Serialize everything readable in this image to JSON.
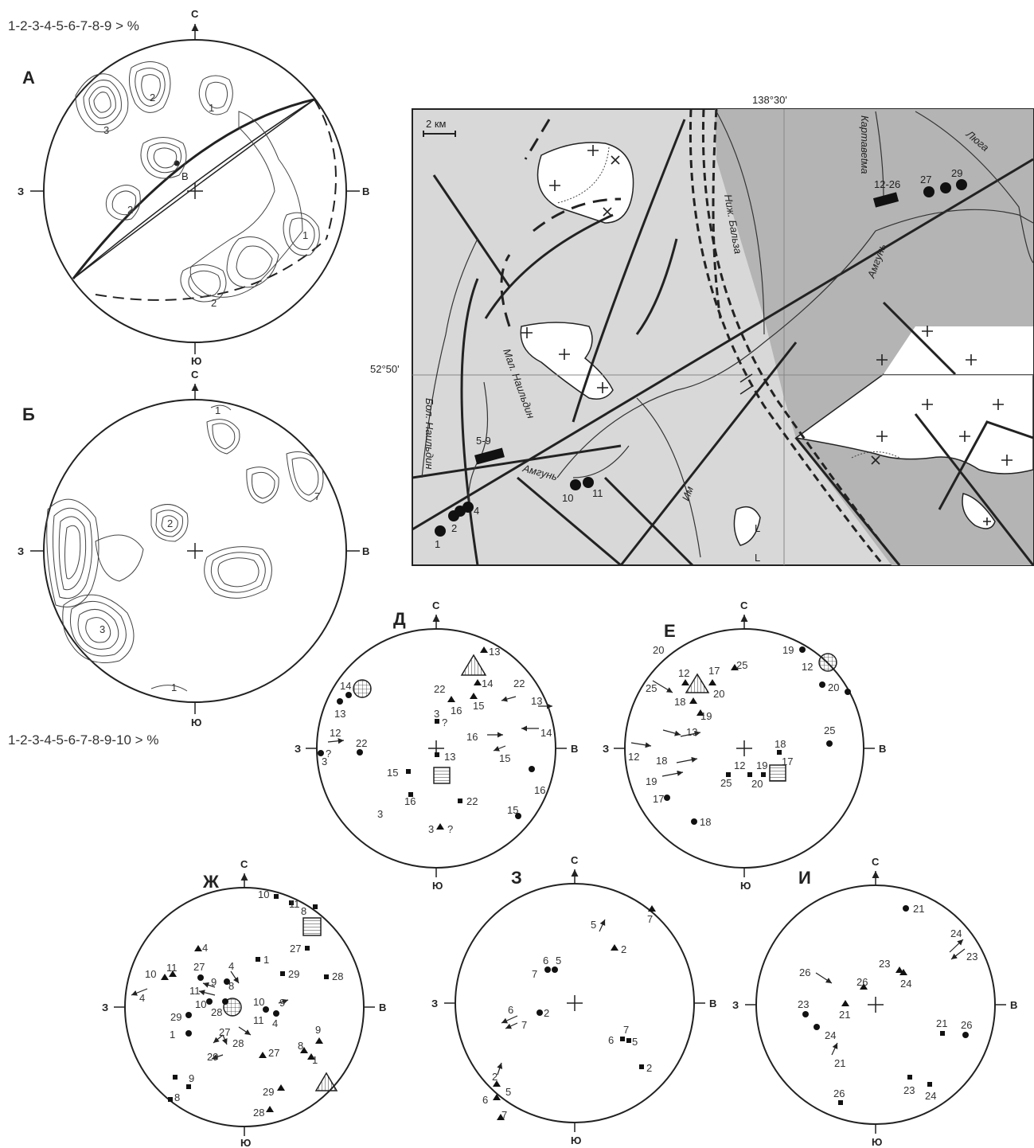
{
  "figure": {
    "legend_top": "1-2-3-4-5-6-7-8-9 > %",
    "legend_bottom": "1-2-3-4-5-6-7-8-9-10 > %",
    "directions": {
      "north": "С",
      "south": "Ю",
      "west": "З",
      "east": "В"
    },
    "panels": {
      "a": "А",
      "b": "Б",
      "d": "Д",
      "e": "Е",
      "zh": "Ж",
      "z": "З",
      "i": "И"
    },
    "contour_label_1": "1",
    "contour_label_2": "2",
    "contour_label_3": "3",
    "contour_label_7": "7",
    "pole_label": "B"
  },
  "map": {
    "longitude": "138°30'",
    "latitude": "52°50'",
    "scale": "2 км",
    "rivers": {
      "bol_naildin": "Бол. Наильдин",
      "mal_naildin": "Мал. Наильдин",
      "amgun_1": "Амгунь",
      "amgun_2": "Амгунь",
      "im": "Им",
      "nizh_balza": "Ниж. Бальза",
      "kartavetma": "Картавеtма",
      "lyuga": "Люга"
    },
    "sites": {
      "s1": "1",
      "s2": "2",
      "s4": "4",
      "s59": "5-9",
      "s10": "10",
      "s11": "11",
      "s1226": "12-26",
      "s27": "27",
      "s29": "29"
    },
    "symbol_L": "L"
  },
  "stereonets": {
    "d": [
      "13",
      "14",
      "22",
      "16",
      "15",
      "22",
      "13",
      "3",
      "?",
      "16",
      "14",
      "12",
      "22",
      "13",
      "3",
      "?",
      "13",
      "15",
      "14",
      "16",
      "15",
      "22",
      "3",
      "15",
      "16",
      "3",
      "?"
    ],
    "e": [
      "19",
      "12",
      "12",
      "17",
      "25",
      "25",
      "18",
      "20",
      "19",
      "20",
      "13",
      "12",
      "18",
      "19",
      "17",
      "18",
      "25",
      "18",
      "17",
      "12",
      "19",
      "25",
      "20",
      "20"
    ],
    "zh": [
      "10",
      "11",
      "8",
      "27",
      "1",
      "29",
      "28",
      "4",
      "27",
      "4",
      "10",
      "11",
      "9",
      "8",
      "11",
      "10",
      "28",
      "27",
      "10",
      "9",
      "4",
      "11",
      "29",
      "1",
      "27",
      "28",
      "8",
      "9",
      "1",
      "29",
      "4",
      "9",
      "8",
      "28",
      "29"
    ],
    "z": [
      "7",
      "5",
      "2",
      "6",
      "5",
      "7",
      "2",
      "6",
      "7",
      "7",
      "6",
      "5",
      "2",
      "2",
      "5",
      "6",
      "7"
    ],
    "i": [
      "21",
      "24",
      "23",
      "26",
      "23",
      "24",
      "26",
      "23",
      "21",
      "24",
      "21",
      "26",
      "21",
      "23",
      "24",
      "26"
    ]
  }
}
